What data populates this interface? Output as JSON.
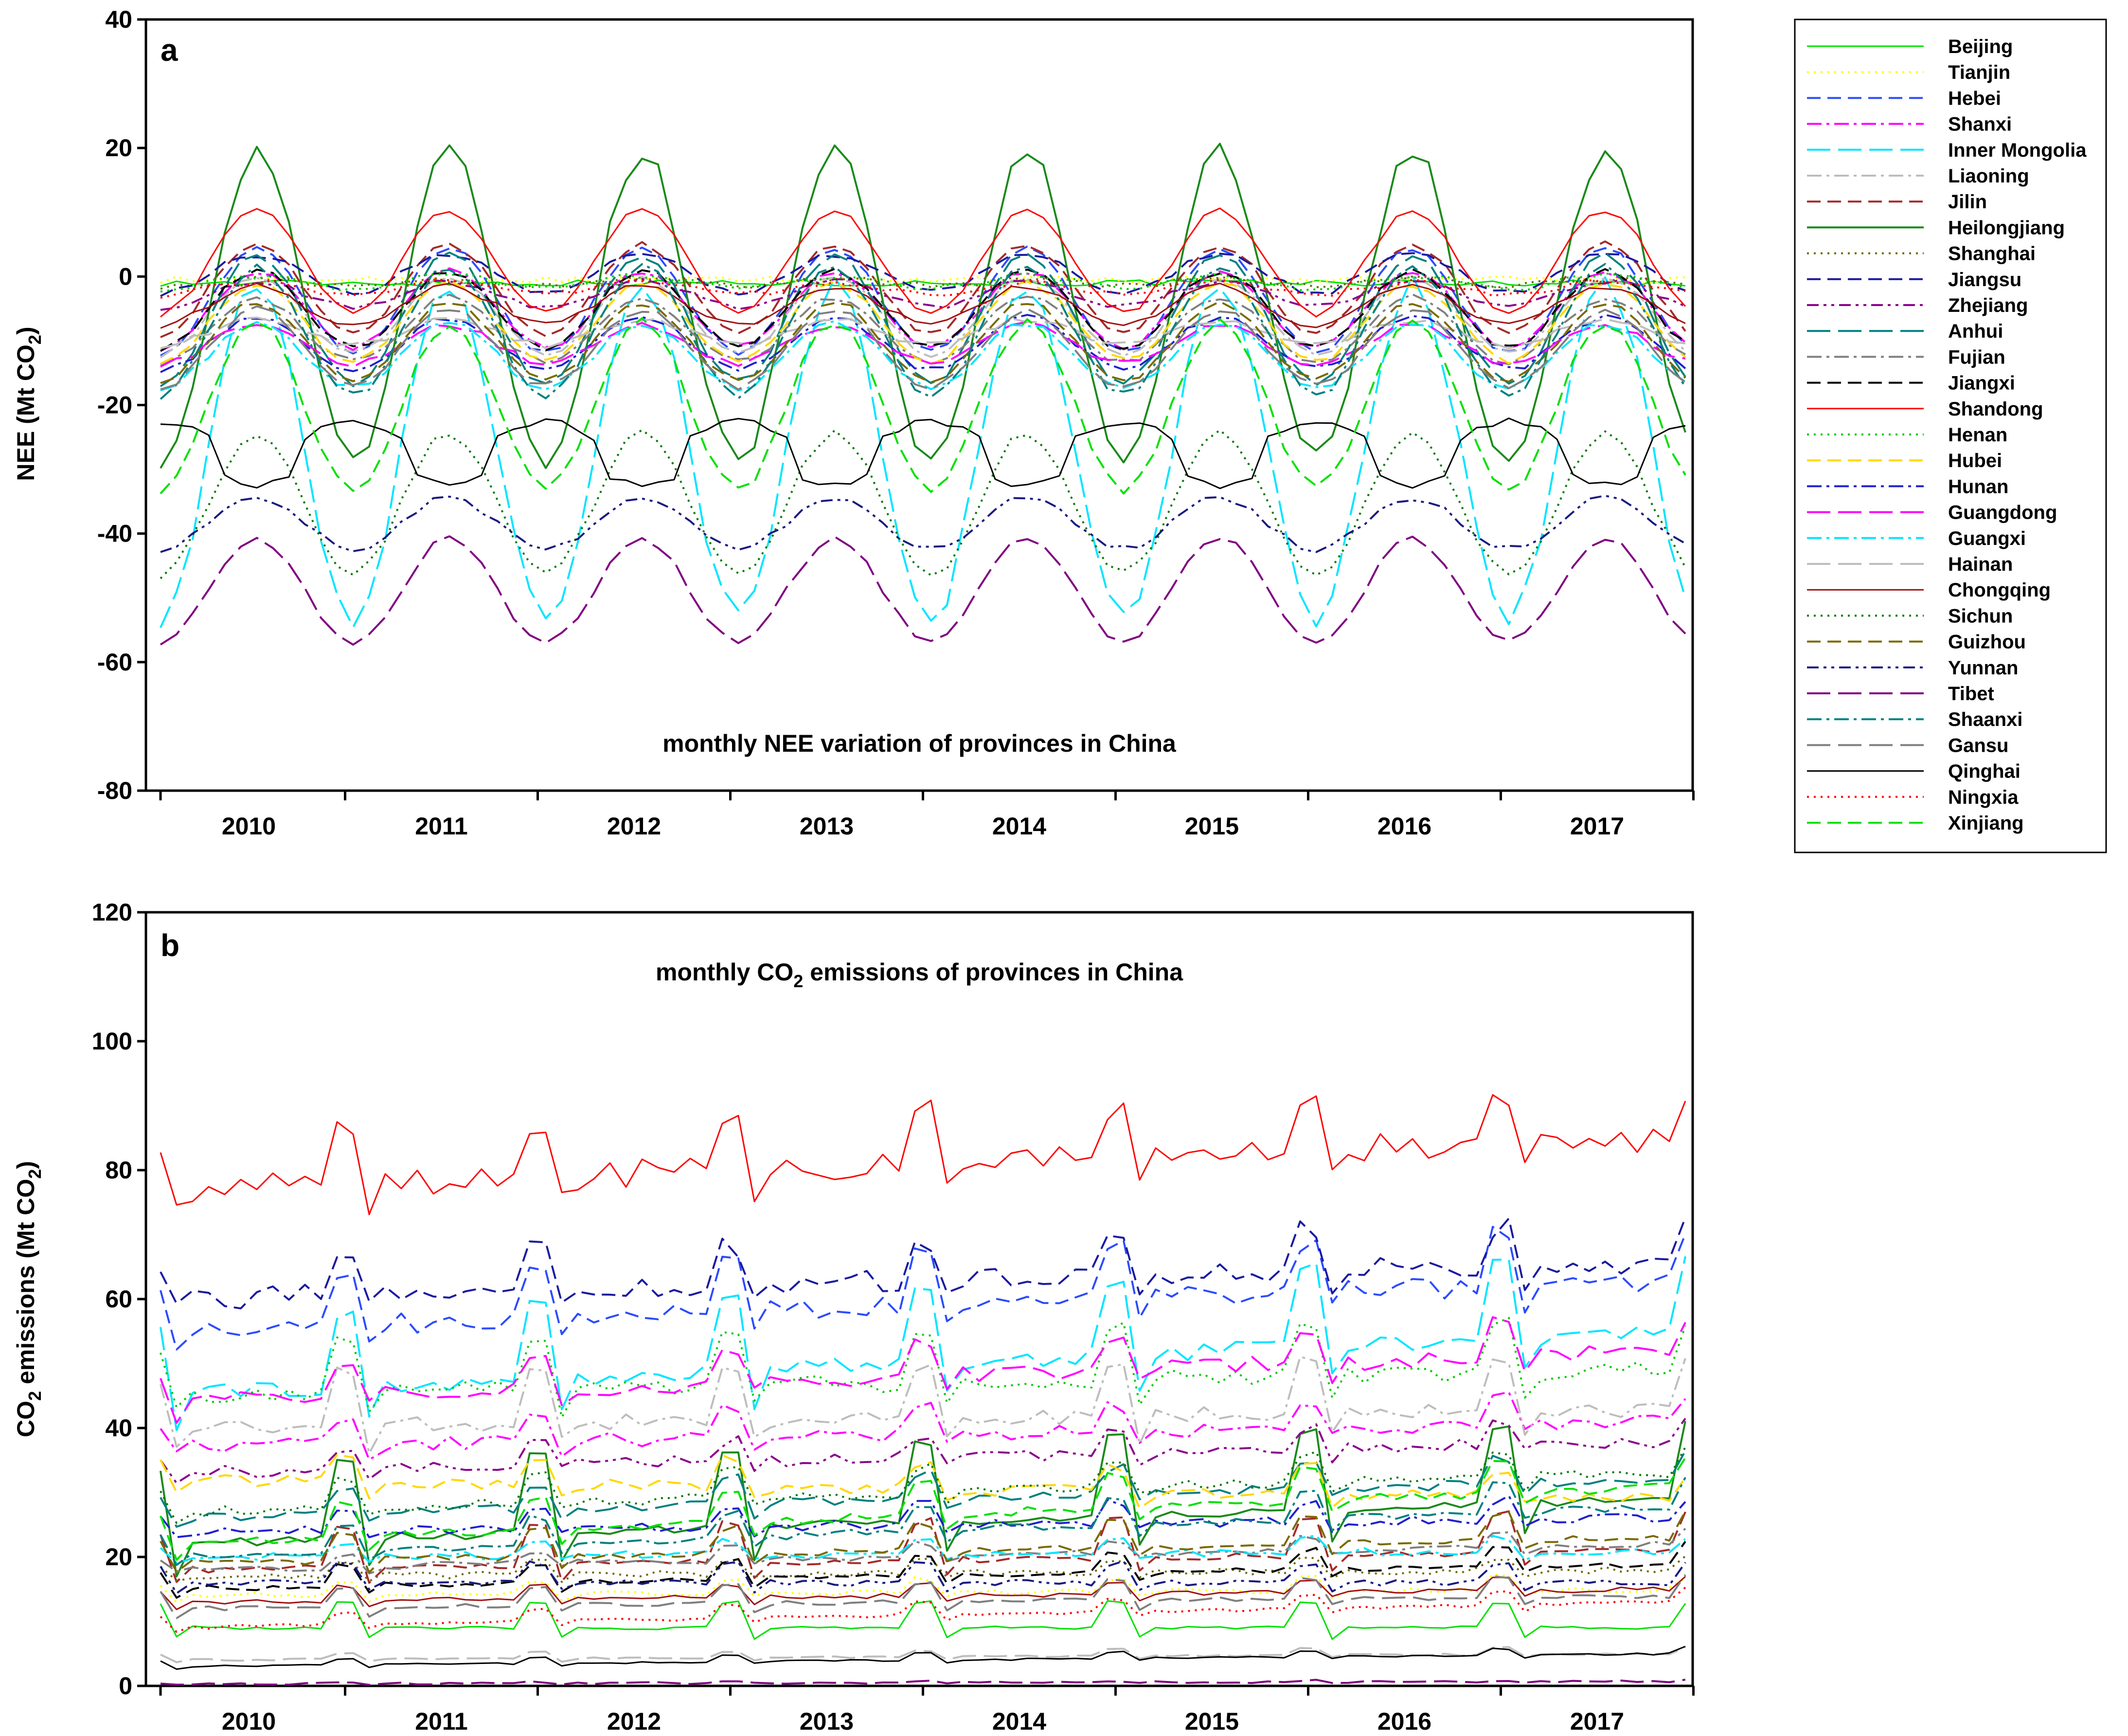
{
  "chart_data": [
    {
      "panel": "a",
      "type": "line",
      "title": "monthly NEE variation of provinces in China",
      "ylabel": "NEE (Mt CO2)",
      "ylabel_main": "NEE (Mt CO",
      "ylabel_sub": "2",
      "ylabel_end": ")",
      "xlabel": "",
      "ylim": [
        -80,
        40
      ],
      "yticks": [
        -80,
        -60,
        -40,
        -20,
        0,
        20,
        40
      ],
      "years": [
        "2010",
        "2011",
        "2012",
        "2013",
        "2014",
        "2015",
        "2016",
        "2017"
      ],
      "x_unit": "month index (0 = Jan 2010, 95 = Dec 2017)",
      "series": [
        {
          "name": "Beijing",
          "color": "#00e000",
          "dash": "solid",
          "width": 3,
          "mean": -1,
          "amp": 0,
          "peak": 0
        },
        {
          "name": "Tianjin",
          "color": "#ffff00",
          "dash": "dot",
          "mean": -0.5,
          "amp": 0,
          "peak": 0
        },
        {
          "name": "Hebei",
          "color": "#2b4bff",
          "dash": "dash",
          "mean": -5,
          "amp": 8,
          "peak": 6
        },
        {
          "name": "Shanxi",
          "color": "#ff00ff",
          "dash": "dashdot",
          "mean": -6,
          "amp": 6,
          "peak": 6
        },
        {
          "name": "Inner Mongolia",
          "color": "#00e5ff",
          "dash": "longdash",
          "mean": -31,
          "amp": 26,
          "peak": 6
        },
        {
          "name": "Liaoning",
          "color": "#bdbdbd",
          "dash": "dashdot",
          "mean": -7,
          "amp": 6,
          "peak": 6
        },
        {
          "name": "Jilin",
          "color": "#a52a2a",
          "dash": "dash",
          "mean": -3,
          "amp": 7,
          "peak": 6
        },
        {
          "name": "Heilongjiang",
          "color": "#1a8a1a",
          "dash": "solid",
          "mean": -8,
          "amp": 24,
          "peak": 6
        },
        {
          "name": "Shanghai",
          "color": "#6b6b00",
          "dash": "dot",
          "mean": -1,
          "amp": 0.5,
          "peak": 6
        },
        {
          "name": "Jiangsu",
          "color": "#1a1aa0",
          "dash": "dash",
          "mean": 0,
          "amp": 3,
          "peak": 6
        },
        {
          "name": "Zhejiang",
          "color": "#8b008b",
          "dash": "dashdot2",
          "mean": -3,
          "amp": 2,
          "peak": 6
        },
        {
          "name": "Anhui",
          "color": "#008080",
          "dash": "longdash",
          "mean": -8,
          "amp": 10,
          "peak": 6
        },
        {
          "name": "Fujian",
          "color": "#7f7f7f",
          "dash": "dashdot",
          "mean": -9,
          "amp": 5,
          "peak": 6
        },
        {
          "name": "Jiangxi",
          "color": "#000000",
          "dash": "dash",
          "mean": -6,
          "amp": 6,
          "peak": 6
        },
        {
          "name": "Shandong",
          "color": "#ff0000",
          "dash": "solid",
          "width": 3,
          "mean": 1,
          "amp": 8,
          "peak": 6
        },
        {
          "name": "Henan",
          "color": "#00c800",
          "dash": "dot",
          "mean": -1,
          "amp": 1,
          "peak": 6
        },
        {
          "name": "Hubei",
          "color": "#ffd700",
          "dash": "dash",
          "mean": -8,
          "amp": 6,
          "peak": 6
        },
        {
          "name": "Hunan",
          "color": "#2020d0",
          "dash": "dashdot",
          "mean": -11,
          "amp": 4,
          "peak": 6
        },
        {
          "name": "Guangdong",
          "color": "#ff00ff",
          "dash": "longdash",
          "mean": -11,
          "amp": 3,
          "peak": 6
        },
        {
          "name": "Guangxi",
          "color": "#00e5ff",
          "dash": "dashdot",
          "mean": -13,
          "amp": 5,
          "peak": 6
        },
        {
          "name": "Hainan",
          "color": "#bdbdbd",
          "dash": "longdash",
          "mean": -9,
          "amp": 2,
          "peak": 6
        },
        {
          "name": "Chongqing",
          "color": "#a01010",
          "dash": "solid",
          "width": 3,
          "mean": -5,
          "amp": 3,
          "peak": 6
        },
        {
          "name": "Sichun",
          "color": "#007800",
          "dash": "dot",
          "mean": -37,
          "amp": 11,
          "peak": 6
        },
        {
          "name": "Guizhou",
          "color": "#7a6a00",
          "dash": "dash",
          "mean": -11,
          "amp": 6,
          "peak": 6
        },
        {
          "name": "Yunnan",
          "color": "#1a1a80",
          "dash": "dashdot2",
          "mean": -39,
          "amp": 4,
          "peak": 6
        },
        {
          "name": "Tibet",
          "color": "#800080",
          "dash": "longdash",
          "mean": -50,
          "amp": 8,
          "peak": 6
        },
        {
          "name": "Shaanxi",
          "color": "#008080",
          "dash": "dashdot",
          "mean": -10,
          "amp": 10,
          "peak": 6
        },
        {
          "name": "Gansu",
          "color": "#7f7f7f",
          "dash": "longdash",
          "mean": -12,
          "amp": 6,
          "peak": 6
        },
        {
          "name": "Qinghai",
          "color": "#000000",
          "dash": "solid",
          "width": 3,
          "mean": -25,
          "amp": 5,
          "peak": 0
        },
        {
          "name": "Ningxia",
          "color": "#ff0000",
          "dash": "dot",
          "mean": -2,
          "amp": 1,
          "peak": 6
        },
        {
          "name": "Xinjiang",
          "color": "#00e000",
          "dash": "dash",
          "mean": -22,
          "amp": 13,
          "peak": 6
        }
      ]
    },
    {
      "panel": "b",
      "type": "line",
      "title": "monthly CO2 emissions of provinces in China",
      "title_main": "monthly CO",
      "title_sub": "2",
      "title_end": " emissions of provinces in China",
      "ylabel": "CO2 emissions (Mt CO2)",
      "ylabel_p1": "CO",
      "ylabel_p1_sub": "2",
      "ylabel_p2": " emissions (Mt CO",
      "ylabel_p2_sub": "2",
      "ylabel_p3": ")",
      "xlabel": "",
      "ylim": [
        0,
        120
      ],
      "yticks": [
        0,
        20,
        40,
        60,
        80,
        100,
        120
      ],
      "years": [
        "2010",
        "2011",
        "2012",
        "2013",
        "2014",
        "2015",
        "2016",
        "2017"
      ],
      "x_unit": "month index (0 = Jan 2010, 95 = Dec 2017)",
      "series": [
        {
          "name": "Beijing",
          "base": 9,
          "trend": 0,
          "winter": 4
        },
        {
          "name": "Tianjin",
          "base": 14,
          "trend": 1,
          "winter": 2
        },
        {
          "name": "Hebei",
          "base": 55,
          "trend": 8,
          "winter": 8
        },
        {
          "name": "Shanxi",
          "base": 37,
          "trend": 4,
          "winter": 4
        },
        {
          "name": "Inner Mongolia",
          "base": 45,
          "trend": 10,
          "winter": 12
        },
        {
          "name": "Liaoning",
          "base": 40,
          "trend": 3,
          "winter": 8
        },
        {
          "name": "Jilin",
          "base": 18,
          "trend": 3,
          "winter": 6
        },
        {
          "name": "Heilongjiang",
          "base": 22,
          "trend": 7,
          "winter": 12
        },
        {
          "name": "Shanghai",
          "base": 17,
          "trend": 1,
          "winter": 2
        },
        {
          "name": "Jiangsu",
          "base": 60,
          "trend": 6,
          "winter": 6
        },
        {
          "name": "Zhejiang",
          "base": 33,
          "trend": 5,
          "winter": 3
        },
        {
          "name": "Anhui",
          "base": 26,
          "trend": 6,
          "winter": 4
        },
        {
          "name": "Fujian",
          "base": 18,
          "trend": 4,
          "winter": 2
        },
        {
          "name": "Jiangxi",
          "base": 15,
          "trend": 4,
          "winter": 3
        },
        {
          "name": "Shandong",
          "base": 77,
          "trend": 8,
          "winter": 8
        },
        {
          "name": "Henan",
          "base": 45,
          "trend": 4,
          "winter": 8
        },
        {
          "name": "Hubei",
          "base": 32,
          "trend": -3,
          "winter": 4
        },
        {
          "name": "Hunan",
          "base": 24,
          "trend": 2,
          "winter": 3
        },
        {
          "name": "Guangdong",
          "base": 44,
          "trend": 8,
          "winter": 5
        },
        {
          "name": "Guangxi",
          "base": 20,
          "trend": 1,
          "winter": 2
        },
        {
          "name": "Hainan",
          "base": 4,
          "trend": 1,
          "winter": 1
        },
        {
          "name": "Chongqing",
          "base": 13,
          "trend": 2,
          "winter": 2
        },
        {
          "name": "Sichun",
          "base": 27,
          "trend": 6,
          "winter": 4
        },
        {
          "name": "Guizhou",
          "base": 19,
          "trend": 4,
          "winter": 4
        },
        {
          "name": "Yunnan",
          "base": 16,
          "trend": 0,
          "winter": 3
        },
        {
          "name": "Tibet",
          "base": 0.3,
          "trend": 0.4,
          "winter": 0.2
        },
        {
          "name": "Shaanxi",
          "base": 20,
          "trend": 8,
          "winter": 4
        },
        {
          "name": "Gansu",
          "base": 12,
          "trend": 2,
          "winter": 3
        },
        {
          "name": "Qinghai",
          "base": 3,
          "trend": 2,
          "winter": 1
        },
        {
          "name": "Ningxia",
          "base": 9,
          "trend": 4,
          "winter": 2
        },
        {
          "name": "Xinjiang",
          "base": 22,
          "trend": 9,
          "winter": 5
        }
      ]
    }
  ],
  "panels": {
    "a_label": "a",
    "b_label": "b"
  }
}
